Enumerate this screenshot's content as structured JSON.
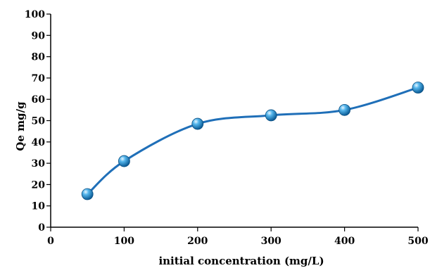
{
  "chart_data": {
    "type": "line",
    "title": "",
    "xlabel": "initial concentration (mg/L)",
    "ylabel": "Qe mg/g",
    "x": [
      50,
      100,
      200,
      300,
      400,
      500
    ],
    "series": [
      {
        "values": [
          15.5,
          31,
          48.5,
          52.5,
          55,
          65.5
        ]
      }
    ],
    "xlim": [
      0,
      500
    ],
    "ylim": [
      0,
      100
    ],
    "xticks": [
      0,
      100,
      200,
      300,
      400,
      500
    ],
    "yticks": [
      0,
      10,
      20,
      30,
      40,
      50,
      60,
      70,
      80,
      90,
      100
    ],
    "grid": false,
    "legend": "none",
    "smooth": true,
    "line_color": "#1f6fb8",
    "marker_color": "#1f8fd0"
  }
}
